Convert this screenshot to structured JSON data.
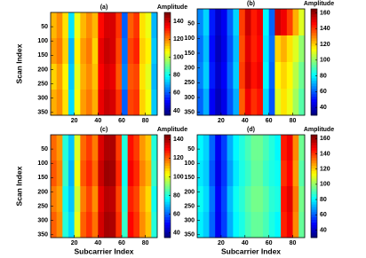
{
  "chart_data": [
    {
      "type": "heatmap",
      "title": "(a)",
      "colorbar_label": "Amplitude",
      "ylabel": "Scan Index",
      "colormap": "jet",
      "x": [
        2.5,
        7.5,
        12.5,
        17.5,
        22.5,
        27.5,
        32.5,
        37.5,
        42.5,
        47.5,
        52.5,
        57.5,
        62.5,
        67.5,
        72.5,
        77.5,
        82.5,
        87.5
      ],
      "y": [
        45,
        135,
        225,
        315
      ],
      "values": [
        [
          115,
          120,
          110,
          75,
          105,
          115,
          120,
          115,
          135,
          140,
          140,
          130,
          60,
          125,
          130,
          110,
          105,
          70
        ],
        [
          118,
          122,
          112,
          70,
          108,
          118,
          122,
          112,
          138,
          142,
          140,
          128,
          62,
          128,
          132,
          112,
          108,
          72
        ],
        [
          112,
          118,
          108,
          72,
          104,
          116,
          120,
          114,
          136,
          140,
          138,
          126,
          64,
          126,
          128,
          110,
          104,
          70
        ],
        [
          116,
          120,
          110,
          74,
          106,
          118,
          122,
          116,
          138,
          142,
          140,
          130,
          60,
          128,
          130,
          112,
          106,
          72
        ]
      ],
      "xlim": [
        0,
        90
      ],
      "ylim": [
        0,
        360
      ],
      "clim": [
        35,
        150
      ],
      "xticks": [
        20,
        40,
        60,
        80
      ],
      "yticks": [
        50,
        100,
        150,
        200,
        250,
        300,
        350
      ],
      "cticks": [
        40,
        60,
        80,
        100,
        120,
        140
      ]
    },
    {
      "type": "heatmap",
      "title": "(b)",
      "colorbar_label": "Amplitude",
      "colormap": "jet",
      "x": [
        2.5,
        7.5,
        12.5,
        17.5,
        22.5,
        27.5,
        32.5,
        37.5,
        42.5,
        47.5,
        52.5,
        57.5,
        62.5,
        67.5,
        72.5,
        77.5,
        82.5,
        87.5
      ],
      "y": [
        45,
        135,
        225,
        315
      ],
      "values": [
        [
          65,
          75,
          50,
          40,
          45,
          60,
          75,
          140,
          155,
          145,
          150,
          80,
          60,
          155,
          150,
          140,
          125,
          110
        ],
        [
          62,
          72,
          48,
          38,
          44,
          58,
          72,
          138,
          152,
          144,
          148,
          78,
          62,
          120,
          125,
          118,
          110,
          100
        ],
        [
          64,
          74,
          50,
          40,
          46,
          60,
          74,
          140,
          154,
          146,
          150,
          80,
          60,
          115,
          120,
          115,
          105,
          95
        ],
        [
          60,
          70,
          46,
          38,
          44,
          58,
          70,
          136,
          150,
          142,
          146,
          76,
          58,
          110,
          118,
          112,
          102,
          92
        ]
      ],
      "xlim": [
        0,
        90
      ],
      "ylim": [
        0,
        360
      ],
      "clim": [
        30,
        165
      ],
      "xticks": [
        20,
        40,
        60,
        80
      ],
      "yticks": [
        50,
        100,
        150,
        200,
        250,
        300,
        350
      ],
      "cticks": [
        40,
        60,
        80,
        100,
        120,
        140,
        160
      ]
    },
    {
      "type": "heatmap",
      "title": "(c)",
      "colorbar_label": "Amplitude",
      "ylabel": "Scan Index",
      "xlabel": "Subcarrier Index",
      "colormap": "jet",
      "x": [
        2.5,
        7.5,
        12.5,
        17.5,
        22.5,
        27.5,
        32.5,
        37.5,
        42.5,
        47.5,
        52.5,
        57.5,
        62.5,
        67.5,
        72.5,
        77.5,
        82.5,
        87.5
      ],
      "y": [
        45,
        135,
        225,
        315
      ],
      "values": [
        [
          120,
          115,
          80,
          70,
          100,
          120,
          125,
          118,
          135,
          140,
          140,
          125,
          80,
          130,
          125,
          115,
          110,
          80
        ],
        [
          122,
          117,
          82,
          68,
          102,
          122,
          127,
          120,
          137,
          142,
          141,
          127,
          78,
          132,
          127,
          117,
          112,
          82
        ],
        [
          118,
          114,
          78,
          70,
          98,
          118,
          124,
          116,
          134,
          139,
          138,
          124,
          80,
          128,
          124,
          114,
          108,
          78
        ],
        [
          121,
          116,
          80,
          72,
          101,
          121,
          126,
          119,
          136,
          141,
          140,
          126,
          82,
          131,
          126,
          116,
          110,
          80
        ]
      ],
      "xlim": [
        0,
        90
      ],
      "ylim": [
        0,
        360
      ],
      "clim": [
        35,
        145
      ],
      "xticks": [
        20,
        40,
        60,
        80
      ],
      "yticks": [
        50,
        100,
        150,
        200,
        250,
        300,
        350
      ],
      "cticks": [
        40,
        60,
        80,
        100,
        120,
        140
      ]
    },
    {
      "type": "heatmap",
      "title": "(d)",
      "colorbar_label": "Amplitude",
      "xlabel": "Subcarrier Index",
      "colormap": "jet",
      "x": [
        2.5,
        7.5,
        12.5,
        17.5,
        22.5,
        27.5,
        32.5,
        37.5,
        42.5,
        47.5,
        52.5,
        57.5,
        62.5,
        67.5,
        72.5,
        77.5,
        82.5,
        87.5
      ],
      "y": [
        45,
        135,
        225,
        315
      ],
      "values": [
        [
          80,
          75,
          60,
          45,
          55,
          70,
          80,
          85,
          90,
          95,
          95,
          90,
          85,
          80,
          145,
          150,
          130,
          95
        ],
        [
          78,
          74,
          58,
          44,
          54,
          68,
          78,
          84,
          88,
          94,
          94,
          88,
          84,
          82,
          142,
          148,
          128,
          92
        ],
        [
          82,
          76,
          62,
          46,
          56,
          72,
          82,
          86,
          92,
          96,
          96,
          92,
          86,
          84,
          146,
          152,
          132,
          96
        ],
        [
          79,
          74,
          60,
          45,
          55,
          70,
          80,
          84,
          90,
          94,
          94,
          90,
          84,
          80,
          144,
          150,
          130,
          94
        ]
      ],
      "xlim": [
        0,
        90
      ],
      "ylim": [
        0,
        360
      ],
      "clim": [
        30,
        165
      ],
      "xticks": [
        20,
        40,
        60,
        80
      ],
      "yticks": [
        50,
        100,
        150,
        200,
        250,
        300,
        350
      ],
      "cticks": [
        40,
        60,
        80,
        100,
        120,
        140,
        160
      ]
    }
  ]
}
